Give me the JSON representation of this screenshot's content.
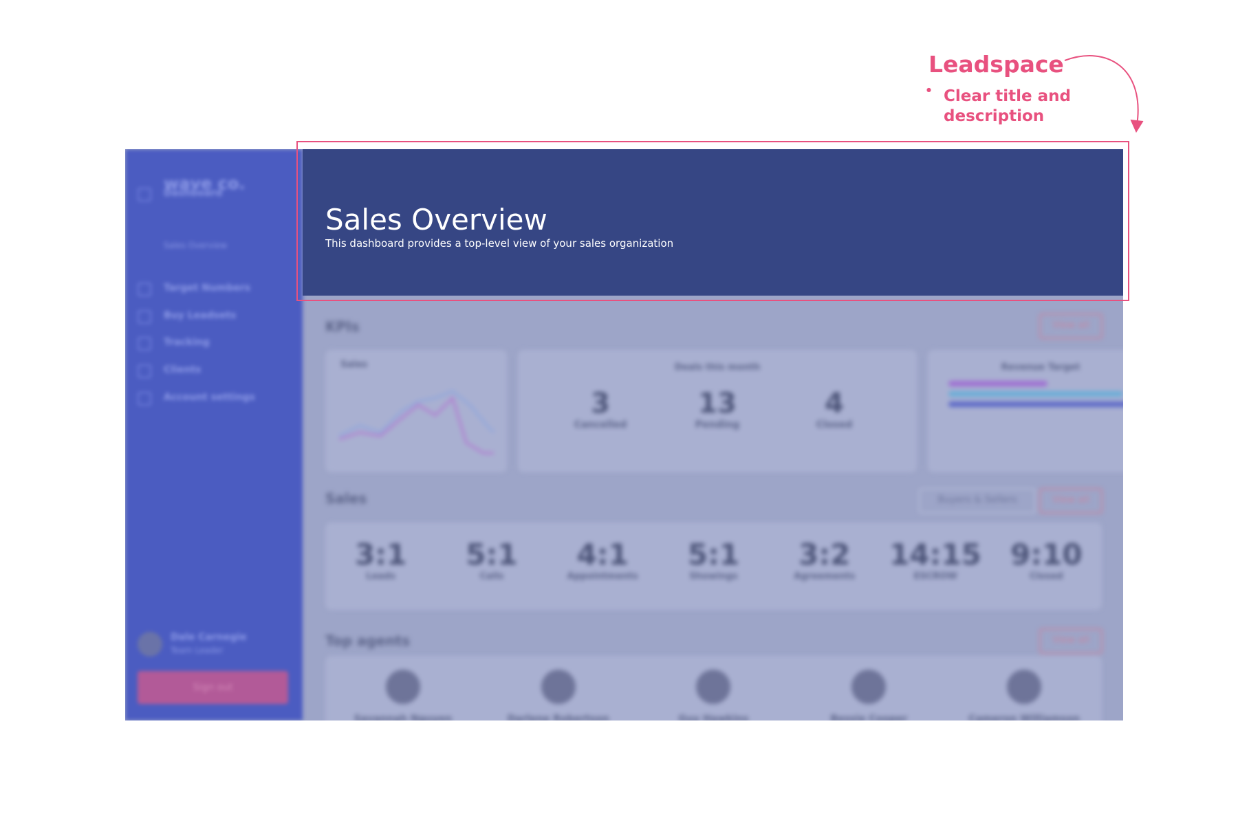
{
  "annotation": {
    "title": "Leadspace",
    "bullet": "Clear title and description"
  },
  "header": {
    "title": "Sales Overview",
    "description": "This dashboard provides a top-level view of your sales organization"
  },
  "sidebar": {
    "logo": "wave co.",
    "nav": [
      "Dashboard",
      "Target Numbers",
      "Buy Leadsets",
      "Tracking",
      "Clients",
      "Account settings"
    ],
    "sub_nav": "Sales Overview",
    "user": {
      "name": "Dale Carnegie",
      "role": "Team Leader"
    },
    "sign_out": "Sign out"
  },
  "kpis": {
    "title": "KPIs",
    "view_all": "View all",
    "sales_chart": "Sales",
    "deals": {
      "title": "Deals this month",
      "items": [
        {
          "value": "3",
          "label": "Cancelled"
        },
        {
          "value": "13",
          "label": "Pending"
        },
        {
          "value": "4",
          "label": "Closed"
        }
      ]
    },
    "revenue": {
      "title": "Revenue Target"
    }
  },
  "sales": {
    "title": "Sales",
    "filter": "Buyers & Sellers",
    "view_all": "View all",
    "ratios": [
      {
        "value": "3:1",
        "label": "Leads"
      },
      {
        "value": "5:1",
        "label": "Calls"
      },
      {
        "value": "4:1",
        "label": "Appointments"
      },
      {
        "value": "5:1",
        "label": "Showings"
      },
      {
        "value": "3:2",
        "label": "Agreements"
      },
      {
        "value": "14:15",
        "label": "ESCROW"
      },
      {
        "value": "9:10",
        "label": "Closed"
      }
    ]
  },
  "top_agents": {
    "title": "Top agents",
    "view_all": "View all",
    "agents": [
      "Savannah Nguyen",
      "Darlene Robertson",
      "Guy Hawkins",
      "Bessie Cooper",
      "Cameron Williamson"
    ]
  }
}
